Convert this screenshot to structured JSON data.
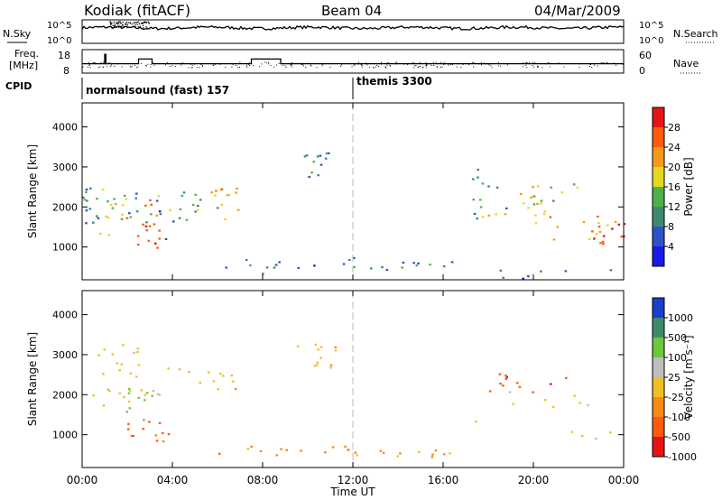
{
  "header": {
    "station": "Kodiak (fitACF)",
    "beam": "Beam 04",
    "date": "04/Mar/2009"
  },
  "noise_panel": {
    "left_label": "N.Sky",
    "right_label": "N.Search",
    "left_ticks": [
      "10^5",
      "10^0"
    ],
    "right_ticks": [
      "10^5",
      "10^0"
    ]
  },
  "freq_panel": {
    "left_label_line1": "Freq.",
    "left_label_line2": "[MHz]",
    "left_ticks": [
      "18",
      "8"
    ],
    "right_label": "Nave",
    "right_ticks": [
      "60",
      "0"
    ]
  },
  "cpid_panel": {
    "label": "CPID",
    "programs": [
      {
        "name": "normalsound (fast) 157",
        "start_hour": 0
      },
      {
        "name": "themis 3300",
        "start_hour": 12
      }
    ]
  },
  "x_axis": {
    "title": "Time UT",
    "ticks": [
      "00:00",
      "04:00",
      "08:00",
      "12:00",
      "16:00",
      "20:00",
      "00:00"
    ],
    "range_hours": [
      0,
      24
    ]
  },
  "y_axis": {
    "title": "Slant Range [km]",
    "ticks": [
      "1000",
      "2000",
      "3000",
      "4000"
    ],
    "range_km": [
      180,
      4600
    ]
  },
  "power_colorbar": {
    "title": "Power [dB]",
    "ticks": [
      "4",
      "8",
      "12",
      "16",
      "20",
      "24",
      "28"
    ],
    "colors": [
      "#1a1ae6",
      "#2f52c8",
      "#3e8a6e",
      "#4fb04a",
      "#e6d81e",
      "#f59a18",
      "#ff5a10",
      "#e61414"
    ]
  },
  "velocity_colorbar": {
    "title": "Velocity [m s⁻¹]",
    "ticks": [
      "1000",
      "500",
      "100",
      "25",
      "-25",
      "-100",
      "-500",
      "-1000"
    ],
    "colors": [
      "#1a3ec8",
      "#3c8c6c",
      "#6cc83c",
      "#bebebe",
      "#f0c020",
      "#f58a14",
      "#ff5a10",
      "#e61414"
    ]
  },
  "chart_data": [
    {
      "type": "line",
      "title": "Noise (N.Sky / N.Search)",
      "x_range_hours": [
        0,
        24
      ],
      "y_scale": "log",
      "ylim": [
        1,
        100000
      ],
      "note_level_log10": 3.3
    },
    {
      "type": "line",
      "title": "Frequency / Nave",
      "freq_mhz_segments": [
        {
          "start": 0.0,
          "end": 1.0,
          "value": 12
        },
        {
          "start": 1.0,
          "end": 1.05,
          "value": 16
        },
        {
          "start": 1.05,
          "end": 2.5,
          "value": 12
        },
        {
          "start": 2.5,
          "end": 3.1,
          "value": 14
        },
        {
          "start": 3.1,
          "end": 7.5,
          "value": 12
        },
        {
          "start": 7.5,
          "end": 8.8,
          "value": 14
        },
        {
          "start": 8.8,
          "end": 12.0,
          "value": 12
        },
        {
          "start": 12.0,
          "end": 24.0,
          "value": 12
        }
      ],
      "nave_typical": 22
    },
    {
      "type": "heatmap",
      "title": "Power",
      "units": "dB",
      "x_range_hours": [
        0,
        24
      ],
      "y_range_km": [
        180,
        4600
      ],
      "clim": [
        0,
        30
      ],
      "patches": [
        {
          "t": [
            0.0,
            0.7
          ],
          "r": [
            1600,
            2500
          ],
          "value": 10
        },
        {
          "t": [
            0.3,
            2.0
          ],
          "r": [
            1300,
            2600
          ],
          "value": 13
        },
        {
          "t": [
            1.0,
            3.4
          ],
          "r": [
            1700,
            2400
          ],
          "value": 19
        },
        {
          "t": [
            2.4,
            3.4
          ],
          "r": [
            900,
            1700
          ],
          "value": 26
        },
        {
          "t": [
            3.5,
            6.9
          ],
          "r": [
            1600,
            2400
          ],
          "value": 13
        },
        {
          "t": [
            5.6,
            6.9
          ],
          "r": [
            1900,
            2600
          ],
          "value": 18
        },
        {
          "t": [
            2.0,
            4.5
          ],
          "r": [
            1200,
            2400
          ],
          "value": 8
        },
        {
          "t": [
            9.8,
            11.0
          ],
          "r": [
            2600,
            3400
          ],
          "value": 9
        },
        {
          "t": [
            6.0,
            12.0
          ],
          "r": [
            500,
            750
          ],
          "value": 8
        },
        {
          "t": [
            12.0,
            16.5
          ],
          "r": [
            450,
            650
          ],
          "value": 10
        },
        {
          "t": [
            0.0,
            24.0
          ],
          "r": [
            180,
            450
          ],
          "value": 7
        },
        {
          "t": [
            17.2,
            18.8
          ],
          "r": [
            1700,
            3000
          ],
          "value": 11
        },
        {
          "t": [
            17.6,
            21.0
          ],
          "r": [
            1700,
            2400
          ],
          "value": 19
        },
        {
          "t": [
            19.6,
            22.0
          ],
          "r": [
            2000,
            2600
          ],
          "value": 15
        },
        {
          "t": [
            20.0,
            24.0
          ],
          "r": [
            1000,
            1800
          ],
          "value": 21
        },
        {
          "t": [
            22.5,
            24.0
          ],
          "r": [
            1100,
            1700
          ],
          "value": 26
        }
      ]
    },
    {
      "type": "heatmap",
      "title": "Velocity",
      "units": "m s^-1",
      "x_range_hours": [
        0,
        24
      ],
      "y_range_km": [
        180,
        4600
      ],
      "patches": [
        {
          "t": [
            0.0,
            2.5
          ],
          "r": [
            1400,
            3300
          ],
          "value": 0
        },
        {
          "t": [
            1.0,
            3.0
          ],
          "r": [
            1800,
            3300
          ],
          "value": 0
        },
        {
          "t": [
            3.5,
            7.0
          ],
          "r": [
            1600,
            2700
          ],
          "value": 0
        },
        {
          "t": [
            9.5,
            11.2
          ],
          "r": [
            2700,
            3300
          ],
          "value": 0
        },
        {
          "t": [
            1.8,
            3.4
          ],
          "r": [
            1300,
            2200
          ],
          "value": 150
        },
        {
          "t": [
            2.0,
            4.0
          ],
          "r": [
            800,
            1400
          ],
          "value": -150
        },
        {
          "t": [
            6.0,
            12.0
          ],
          "r": [
            500,
            800
          ],
          "value": -60
        },
        {
          "t": [
            12.0,
            16.5
          ],
          "r": [
            450,
            650
          ],
          "value": -40
        },
        {
          "t": [
            17.2,
            24.0
          ],
          "r": [
            900,
            2100
          ],
          "value": 0
        },
        {
          "t": [
            18.0,
            21.8
          ],
          "r": [
            2000,
            2600
          ],
          "value": -400
        }
      ]
    }
  ]
}
